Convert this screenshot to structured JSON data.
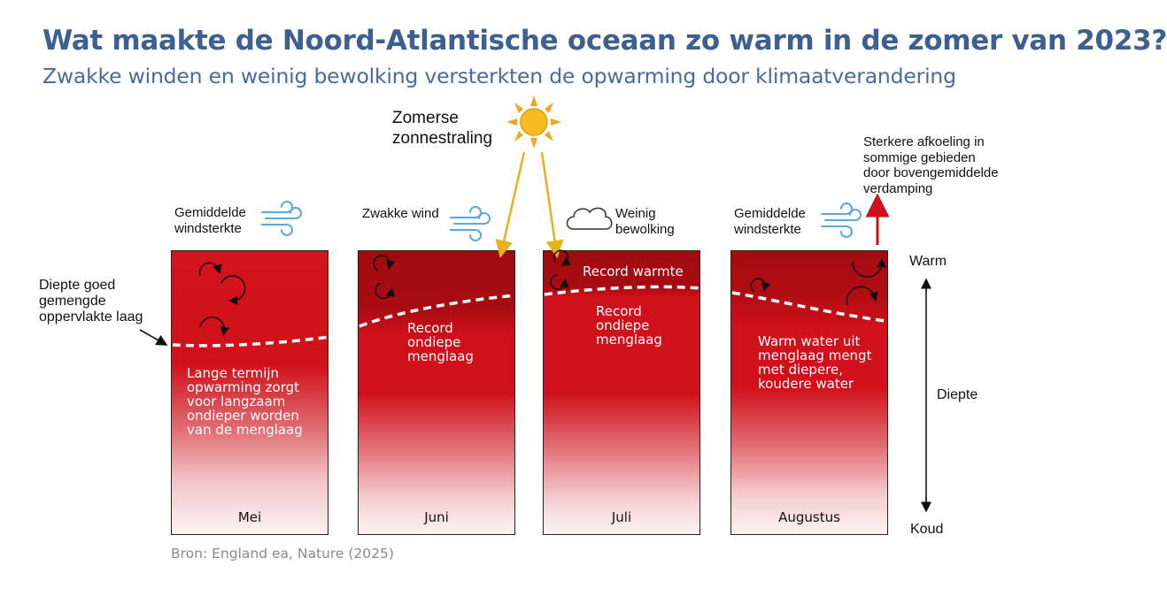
{
  "title": "Wat maakte de Noord-Atlantische oceaan zo warm in de zomer van 2023?",
  "subtitle": "Zwakke winden en weinig bewolking versterkten de opwarming door klimaatverandering",
  "sun_label": [
    "Zomerse",
    "zonnestraling"
  ],
  "mixed_layer_label": [
    "Diepte goed",
    "gemengde",
    "oppervlakte laag"
  ],
  "panels": [
    {
      "month": "Mei",
      "top_label": [
        "Gemiddelde",
        "windsterkte"
      ],
      "text": [
        "Lange termijn",
        "opwarming zorgt",
        "voor langzaam",
        "ondieper worden",
        "van de menglaag"
      ]
    },
    {
      "month": "Juni",
      "top_label": [
        "Zwakke wind"
      ],
      "text": [
        "Record",
        "ondiepe",
        "menglaag"
      ]
    },
    {
      "month": "Juli",
      "top_label": [
        "Weinig",
        "bewolking"
      ],
      "text_top": "Record warmte",
      "text": [
        "Record",
        "ondiepe",
        "menglaag"
      ]
    },
    {
      "month": "Augustus",
      "top_label": [
        "Gemiddelde",
        "windsterkte"
      ],
      "text": [
        "Warm water uit",
        "menglaag mengt",
        "met diepere,",
        "koudere water"
      ]
    }
  ],
  "cooling_label": [
    "Sterkere afkoeling in",
    "sommige gebieden",
    "door bovengemiddelde",
    "verdamping"
  ],
  "scale": {
    "top": "Warm",
    "middle": "Diepte",
    "bottom": "Koud"
  },
  "source": "Bron: England ea, Nature (2025)",
  "colors": {
    "title": "#3d5f91",
    "ocean": "#d0101a",
    "ocean_dark": "#9e0a0f",
    "sun": "#f2b21c",
    "wind": "#5aa9dc",
    "arrow_up": "#d0101a"
  },
  "icons": [
    "sun-icon",
    "wind-icon",
    "cloud-icon",
    "circulation-arrow-icon"
  ]
}
